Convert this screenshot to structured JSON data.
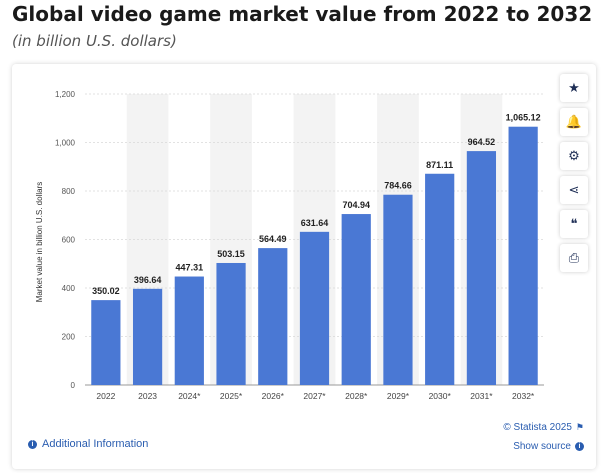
{
  "header": {
    "title": "Global video game market value from 2022 to 2032",
    "subtitle": "(in billion U.S. dollars)"
  },
  "toolbar": {
    "items": [
      {
        "name": "favorite",
        "icon": "star-icon",
        "glyph": "★"
      },
      {
        "name": "notification",
        "icon": "bell-icon",
        "glyph": "🔔"
      },
      {
        "name": "settings",
        "icon": "gear-icon",
        "glyph": "⚙"
      },
      {
        "name": "share",
        "icon": "share-icon",
        "glyph": "⋖"
      },
      {
        "name": "cite",
        "icon": "quote-icon",
        "glyph": "❝"
      },
      {
        "name": "print",
        "icon": "print-icon",
        "glyph": "⎙"
      }
    ]
  },
  "footer": {
    "additional_info": "Additional Information",
    "copyright": "© Statista 2025",
    "show_source": "Show source"
  },
  "colors": {
    "bar": "#4a78d4",
    "link": "#2a5db0",
    "grid": "#d9d9d9",
    "band": "#f3f3f3"
  },
  "chart_data": {
    "type": "bar",
    "categories": [
      "2022",
      "2023",
      "2024*",
      "2025*",
      "2026*",
      "2027*",
      "2028*",
      "2029*",
      "2030*",
      "2031*",
      "2032*"
    ],
    "values": [
      350.02,
      396.64,
      447.31,
      503.15,
      564.49,
      631.64,
      704.94,
      784.66,
      871.11,
      964.52,
      1065.12
    ],
    "value_labels": [
      "350.02",
      "396.64",
      "447.31",
      "503.15",
      "564.49",
      "631.64",
      "704.94",
      "784.66",
      "871.11",
      "964.52",
      "1,065.12"
    ],
    "ylabel": "Market value in billion U.S. dollars",
    "xlabel": "",
    "ylim": [
      0,
      1200
    ],
    "yticks": [
      0,
      200,
      400,
      600,
      800,
      1000,
      1200
    ],
    "ytick_labels": [
      "0",
      "200",
      "400",
      "600",
      "800",
      "1,000",
      "1,200"
    ],
    "grid": true
  }
}
